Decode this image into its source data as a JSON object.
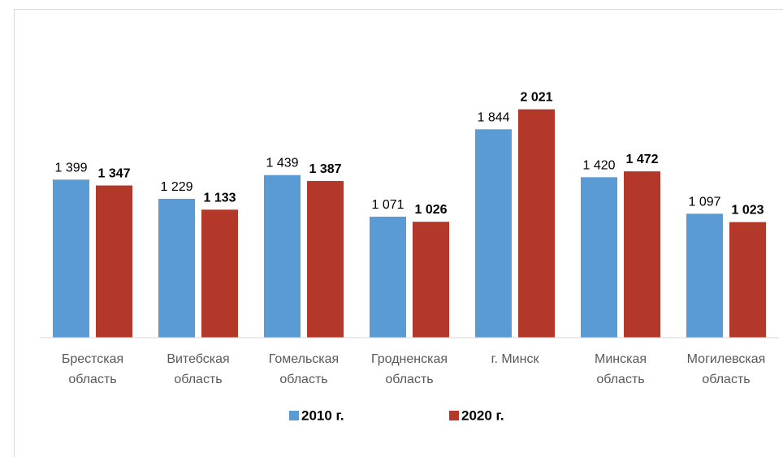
{
  "chart_data": {
    "type": "bar",
    "categories": [
      "Брестская\nобласть",
      "Витебская\nобласть",
      "Гомельская\nобласть",
      "Гродненская\nобласть",
      "г. Минск",
      "Минская\nобласть",
      "Могилевская\nобласть"
    ],
    "series": [
      {
        "name": "2010 г.",
        "color": "#5b9bd5",
        "values": [
          1399,
          1229,
          1439,
          1071,
          1844,
          1420,
          1097
        ],
        "value_labels": [
          "1 399",
          "1 229",
          "1 439",
          "1 071",
          "1 844",
          "1 420",
          "1 097"
        ]
      },
      {
        "name": "2020 г.",
        "color": "#b3382a",
        "values": [
          1347,
          1133,
          1387,
          1026,
          2021,
          1472,
          1023
        ],
        "value_labels": [
          "1 347",
          "1 133",
          "1 387",
          "1 026",
          "2 021",
          "1 472",
          "1 023"
        ]
      }
    ],
    "ylim": [
      0,
      2500
    ],
    "legend": "bottom"
  }
}
